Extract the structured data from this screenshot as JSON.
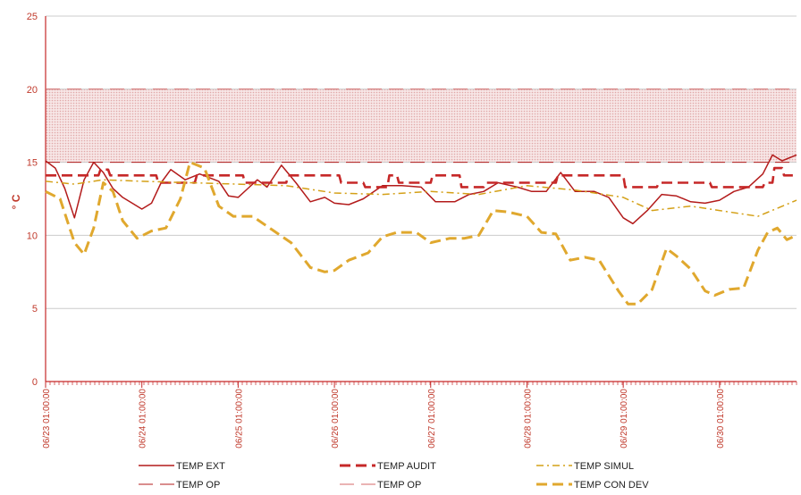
{
  "chart_data": {
    "type": "line",
    "ylabel": "° C",
    "ylim": [
      0,
      25
    ],
    "yticks": [
      0,
      5,
      10,
      15,
      20,
      25
    ],
    "xlim": [
      0,
      7.8
    ],
    "x_tick_labels": [
      {
        "x": 0,
        "label": "06/23 01:00:00"
      },
      {
        "x": 1,
        "label": "06/24 01:00:00"
      },
      {
        "x": 2,
        "label": "06/25 01:00:00"
      },
      {
        "x": 3,
        "label": "06/26 01:00:00"
      },
      {
        "x": 4,
        "label": "06/27 01:00:00"
      },
      {
        "x": 5,
        "label": "06/28 01:00:00"
      },
      {
        "x": 6,
        "label": "06/29 01:00:00"
      },
      {
        "x": 7,
        "label": "06/30 01:00:00"
      }
    ],
    "band": {
      "from": 15,
      "to": 20,
      "color": "#f3d3d3"
    },
    "grid": "horizontal",
    "legend_position": "bottom",
    "series": [
      {
        "name": "TEMP EXT",
        "color": "#b31b1b",
        "style": "solid",
        "points": [
          [
            0,
            15.1
          ],
          [
            0.1,
            14.6
          ],
          [
            0.2,
            13.2
          ],
          [
            0.3,
            11.2
          ],
          [
            0.4,
            13.8
          ],
          [
            0.5,
            15.0
          ],
          [
            0.6,
            14.3
          ],
          [
            0.7,
            13.2
          ],
          [
            0.8,
            12.6
          ],
          [
            0.9,
            12.2
          ],
          [
            1.0,
            11.8
          ],
          [
            1.1,
            12.2
          ],
          [
            1.2,
            13.6
          ],
          [
            1.3,
            14.5
          ],
          [
            1.45,
            13.8
          ],
          [
            1.6,
            14.2
          ],
          [
            1.8,
            13.7
          ],
          [
            1.9,
            12.7
          ],
          [
            2.0,
            12.6
          ],
          [
            2.1,
            13.2
          ],
          [
            2.2,
            13.8
          ],
          [
            2.3,
            13.3
          ],
          [
            2.45,
            14.8
          ],
          [
            2.6,
            13.6
          ],
          [
            2.75,
            12.3
          ],
          [
            2.9,
            12.6
          ],
          [
            3.0,
            12.2
          ],
          [
            3.15,
            12.1
          ],
          [
            3.3,
            12.5
          ],
          [
            3.5,
            13.4
          ],
          [
            3.7,
            13.4
          ],
          [
            3.9,
            13.3
          ],
          [
            4.05,
            12.3
          ],
          [
            4.25,
            12.3
          ],
          [
            4.4,
            12.8
          ],
          [
            4.55,
            13.0
          ],
          [
            4.7,
            13.6
          ],
          [
            4.9,
            13.3
          ],
          [
            5.05,
            13.0
          ],
          [
            5.2,
            13.0
          ],
          [
            5.35,
            14.3
          ],
          [
            5.5,
            13.0
          ],
          [
            5.7,
            13.0
          ],
          [
            5.85,
            12.6
          ],
          [
            6.0,
            11.2
          ],
          [
            6.1,
            10.8
          ],
          [
            6.25,
            11.7
          ],
          [
            6.4,
            12.8
          ],
          [
            6.55,
            12.7
          ],
          [
            6.7,
            12.3
          ],
          [
            6.85,
            12.2
          ],
          [
            7.0,
            12.4
          ],
          [
            7.15,
            13.0
          ],
          [
            7.3,
            13.3
          ],
          [
            7.45,
            14.2
          ],
          [
            7.55,
            15.5
          ],
          [
            7.65,
            15.1
          ],
          [
            7.8,
            15.5
          ]
        ]
      },
      {
        "name": "TEMP AUDIT",
        "color": "#c62828",
        "style": "dash",
        "points": [
          [
            0,
            14.1
          ],
          [
            0.55,
            14.1
          ],
          [
            0.57,
            14.5
          ],
          [
            0.65,
            14.5
          ],
          [
            0.67,
            14.1
          ],
          [
            1.15,
            14.1
          ],
          [
            1.17,
            13.6
          ],
          [
            1.55,
            13.6
          ],
          [
            1.57,
            14.1
          ],
          [
            2.05,
            14.1
          ],
          [
            2.07,
            13.6
          ],
          [
            2.5,
            13.6
          ],
          [
            2.52,
            14.1
          ],
          [
            3.05,
            14.1
          ],
          [
            3.07,
            13.6
          ],
          [
            3.3,
            13.6
          ],
          [
            3.32,
            13.3
          ],
          [
            3.55,
            13.3
          ],
          [
            3.57,
            14.1
          ],
          [
            3.65,
            14.1
          ],
          [
            3.67,
            13.6
          ],
          [
            4.0,
            13.6
          ],
          [
            4.02,
            14.1
          ],
          [
            4.3,
            14.1
          ],
          [
            4.32,
            13.3
          ],
          [
            4.55,
            13.3
          ],
          [
            4.57,
            13.6
          ],
          [
            5.3,
            13.6
          ],
          [
            5.32,
            14.1
          ],
          [
            6.0,
            14.1
          ],
          [
            6.02,
            13.3
          ],
          [
            6.35,
            13.3
          ],
          [
            6.37,
            13.6
          ],
          [
            6.9,
            13.6
          ],
          [
            6.92,
            13.3
          ],
          [
            7.45,
            13.3
          ],
          [
            7.47,
            13.6
          ],
          [
            7.55,
            13.6
          ],
          [
            7.57,
            14.6
          ],
          [
            7.65,
            14.6
          ],
          [
            7.67,
            14.1
          ],
          [
            7.8,
            14.1
          ]
        ]
      },
      {
        "name": "TEMP SIMUL",
        "color": "#d4a017",
        "style": "dashdot",
        "points": [
          [
            0,
            13.7
          ],
          [
            0.3,
            13.5
          ],
          [
            0.6,
            13.8
          ],
          [
            1.0,
            13.7
          ],
          [
            1.5,
            13.6
          ],
          [
            2.0,
            13.5
          ],
          [
            2.5,
            13.4
          ],
          [
            3.0,
            12.9
          ],
          [
            3.5,
            12.8
          ],
          [
            4.0,
            13.0
          ],
          [
            4.5,
            12.8
          ],
          [
            5.0,
            13.4
          ],
          [
            5.5,
            13.1
          ],
          [
            6.0,
            12.6
          ],
          [
            6.3,
            11.7
          ],
          [
            6.7,
            12.0
          ],
          [
            7.0,
            11.7
          ],
          [
            7.4,
            11.3
          ],
          [
            7.8,
            12.4
          ]
        ]
      },
      {
        "name": "TEMP OP",
        "color": "#b31b1b",
        "style": "longdash",
        "points": [
          [
            0,
            15.0
          ],
          [
            7.8,
            15.0
          ]
        ]
      },
      {
        "name": "TEMP OP",
        "color": "#d46a6a",
        "style": "longdash",
        "points": [
          [
            0,
            20.0
          ],
          [
            7.8,
            20.0
          ]
        ]
      },
      {
        "name": "TEMP CON DEV",
        "color": "#e0a82e",
        "style": "dash",
        "points": [
          [
            0,
            13.0
          ],
          [
            0.15,
            12.5
          ],
          [
            0.3,
            9.5
          ],
          [
            0.4,
            8.7
          ],
          [
            0.5,
            10.5
          ],
          [
            0.6,
            13.6
          ],
          [
            0.7,
            13.0
          ],
          [
            0.8,
            11.0
          ],
          [
            0.95,
            9.8
          ],
          [
            1.1,
            10.3
          ],
          [
            1.25,
            10.5
          ],
          [
            1.4,
            12.5
          ],
          [
            1.5,
            15.0
          ],
          [
            1.65,
            14.6
          ],
          [
            1.8,
            12.0
          ],
          [
            1.95,
            11.3
          ],
          [
            2.15,
            11.3
          ],
          [
            2.35,
            10.4
          ],
          [
            2.55,
            9.5
          ],
          [
            2.75,
            7.8
          ],
          [
            2.9,
            7.5
          ],
          [
            3.0,
            7.6
          ],
          [
            3.15,
            8.3
          ],
          [
            3.35,
            8.8
          ],
          [
            3.5,
            9.9
          ],
          [
            3.65,
            10.2
          ],
          [
            3.85,
            10.2
          ],
          [
            4.0,
            9.5
          ],
          [
            4.2,
            9.8
          ],
          [
            4.35,
            9.8
          ],
          [
            4.5,
            10.0
          ],
          [
            4.65,
            11.7
          ],
          [
            4.8,
            11.6
          ],
          [
            5.0,
            11.3
          ],
          [
            5.15,
            10.2
          ],
          [
            5.3,
            10.1
          ],
          [
            5.45,
            8.3
          ],
          [
            5.6,
            8.5
          ],
          [
            5.75,
            8.3
          ],
          [
            5.95,
            6.2
          ],
          [
            6.05,
            5.3
          ],
          [
            6.15,
            5.3
          ],
          [
            6.3,
            6.3
          ],
          [
            6.45,
            9.1
          ],
          [
            6.55,
            8.6
          ],
          [
            6.7,
            7.7
          ],
          [
            6.85,
            6.2
          ],
          [
            6.95,
            5.9
          ],
          [
            7.1,
            6.3
          ],
          [
            7.25,
            6.4
          ],
          [
            7.4,
            9.0
          ],
          [
            7.5,
            10.2
          ],
          [
            7.6,
            10.5
          ],
          [
            7.7,
            9.7
          ],
          [
            7.8,
            10.0
          ]
        ]
      }
    ]
  }
}
